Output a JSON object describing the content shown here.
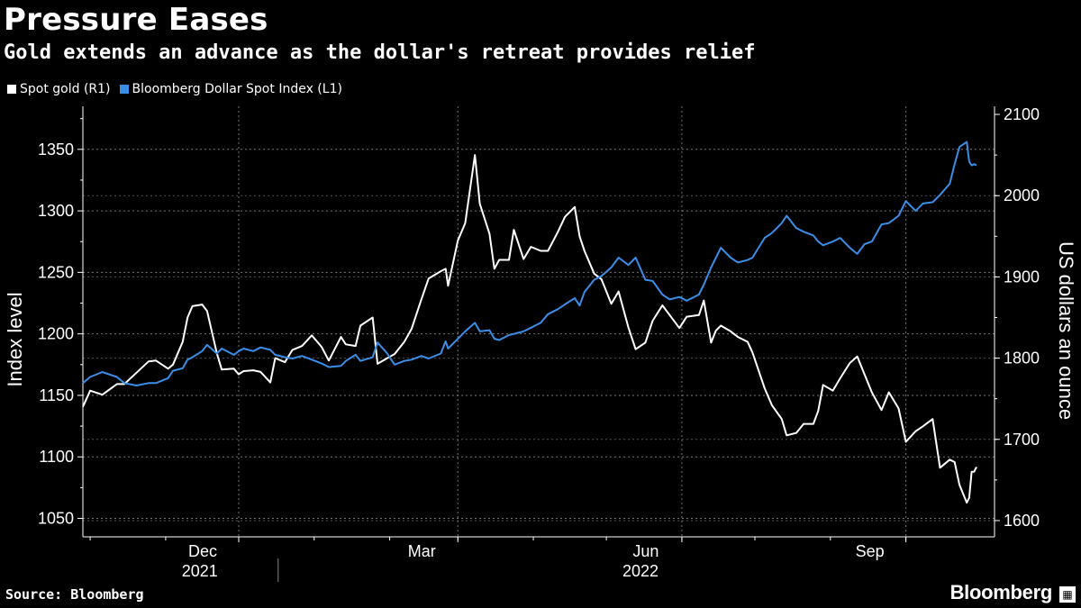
{
  "title": "Pressure Eases",
  "subtitle": "Gold extends an advance as the dollar's retreat provides relief",
  "source": "Source: Bloomberg",
  "brand": "Bloomberg",
  "colors": {
    "gold": "#ffffff",
    "dollar": "#3b8ee8",
    "grid": "#777777",
    "background": "#000000"
  },
  "legend": [
    {
      "label": "Spot gold (R1)",
      "color": "#ffffff"
    },
    {
      "label": "Bloomberg Dollar Spot Index (L1)",
      "color": "#3b8ee8"
    }
  ],
  "chart_data": {
    "type": "line",
    "ylabel_left": "Index level",
    "ylabel_right": "US dollars an ounce",
    "ylim_left": [
      1035,
      1385
    ],
    "ylim_right": [
      1580,
      2110
    ],
    "yticks_left": [
      1050,
      1100,
      1150,
      1200,
      1250,
      1300,
      1350
    ],
    "yticks_right": [
      1600,
      1700,
      1800,
      1900,
      2000,
      2100
    ],
    "xlim": [
      "2021-09-28",
      "2022-09-30"
    ],
    "xticks": [
      {
        "label": "Dec",
        "date": "2021-12-01"
      },
      {
        "label": "Mar",
        "date": "2022-03-01"
      },
      {
        "label": "Jun",
        "date": "2022-06-01"
      },
      {
        "label": "Sep",
        "date": "2022-09-01"
      }
    ],
    "year_labels": [
      {
        "label": "2021",
        "date": "2021-11-15"
      },
      {
        "label": "2022",
        "date": "2022-05-15"
      }
    ],
    "year_divider": "2022-01-01",
    "grid": true,
    "legend_position": "top-left",
    "series": [
      {
        "name": "Spot gold (R1)",
        "axis": "right",
        "points": [
          [
            "2021-09-28",
            1740
          ],
          [
            "2021-10-01",
            1760
          ],
          [
            "2021-10-06",
            1755
          ],
          [
            "2021-10-12",
            1768
          ],
          [
            "2021-10-15",
            1768
          ],
          [
            "2021-10-20",
            1782
          ],
          [
            "2021-10-25",
            1796
          ],
          [
            "2021-10-28",
            1797
          ],
          [
            "2021-11-02",
            1787
          ],
          [
            "2021-11-04",
            1792
          ],
          [
            "2021-11-08",
            1820
          ],
          [
            "2021-11-10",
            1850
          ],
          [
            "2021-11-12",
            1864
          ],
          [
            "2021-11-16",
            1866
          ],
          [
            "2021-11-18",
            1858
          ],
          [
            "2021-11-22",
            1806
          ],
          [
            "2021-11-24",
            1786
          ],
          [
            "2021-11-29",
            1787
          ],
          [
            "2021-12-01",
            1780
          ],
          [
            "2021-12-03",
            1784
          ],
          [
            "2021-12-07",
            1785
          ],
          [
            "2021-12-10",
            1783
          ],
          [
            "2021-12-14",
            1770
          ],
          [
            "2021-12-16",
            1800
          ],
          [
            "2021-12-20",
            1795
          ],
          [
            "2021-12-23",
            1810
          ],
          [
            "2021-12-27",
            1815
          ],
          [
            "2021-12-31",
            1828
          ],
          [
            "2022-01-04",
            1814
          ],
          [
            "2022-01-07",
            1797
          ],
          [
            "2022-01-12",
            1826
          ],
          [
            "2022-01-14",
            1817
          ],
          [
            "2022-01-18",
            1815
          ],
          [
            "2022-01-20",
            1840
          ],
          [
            "2022-01-25",
            1850
          ],
          [
            "2022-01-27",
            1793
          ],
          [
            "2022-01-31",
            1800
          ],
          [
            "2022-02-03",
            1805
          ],
          [
            "2022-02-07",
            1820
          ],
          [
            "2022-02-10",
            1836
          ],
          [
            "2022-02-14",
            1872
          ],
          [
            "2022-02-17",
            1898
          ],
          [
            "2022-02-22",
            1907
          ],
          [
            "2022-02-24",
            1910
          ],
          [
            "2022-02-25",
            1889
          ],
          [
            "2022-03-01",
            1945
          ],
          [
            "2022-03-04",
            1966
          ],
          [
            "2022-03-08",
            2050
          ],
          [
            "2022-03-10",
            1990
          ],
          [
            "2022-03-14",
            1953
          ],
          [
            "2022-03-16",
            1910
          ],
          [
            "2022-03-18",
            1921
          ],
          [
            "2022-03-22",
            1921
          ],
          [
            "2022-03-24",
            1958
          ],
          [
            "2022-03-28",
            1922
          ],
          [
            "2022-03-31",
            1937
          ],
          [
            "2022-04-04",
            1932
          ],
          [
            "2022-04-07",
            1932
          ],
          [
            "2022-04-11",
            1955
          ],
          [
            "2022-04-14",
            1974
          ],
          [
            "2022-04-18",
            1986
          ],
          [
            "2022-04-20",
            1950
          ],
          [
            "2022-04-22",
            1932
          ],
          [
            "2022-04-26",
            1904
          ],
          [
            "2022-04-29",
            1897
          ],
          [
            "2022-05-03",
            1867
          ],
          [
            "2022-05-06",
            1882
          ],
          [
            "2022-05-10",
            1838
          ],
          [
            "2022-05-13",
            1811
          ],
          [
            "2022-05-17",
            1819
          ],
          [
            "2022-05-20",
            1846
          ],
          [
            "2022-05-24",
            1865
          ],
          [
            "2022-05-27",
            1853
          ],
          [
            "2022-05-31",
            1837
          ],
          [
            "2022-06-03",
            1851
          ],
          [
            "2022-06-08",
            1853
          ],
          [
            "2022-06-10",
            1871
          ],
          [
            "2022-06-13",
            1819
          ],
          [
            "2022-06-15",
            1834
          ],
          [
            "2022-06-17",
            1840
          ],
          [
            "2022-06-21",
            1833
          ],
          [
            "2022-06-24",
            1826
          ],
          [
            "2022-06-28",
            1820
          ],
          [
            "2022-06-30",
            1807
          ],
          [
            "2022-07-05",
            1763
          ],
          [
            "2022-07-08",
            1742
          ],
          [
            "2022-07-12",
            1725
          ],
          [
            "2022-07-14",
            1705
          ],
          [
            "2022-07-18",
            1708
          ],
          [
            "2022-07-21",
            1719
          ],
          [
            "2022-07-25",
            1719
          ],
          [
            "2022-07-27",
            1735
          ],
          [
            "2022-07-29",
            1767
          ],
          [
            "2022-08-02",
            1760
          ],
          [
            "2022-08-05",
            1775
          ],
          [
            "2022-08-09",
            1794
          ],
          [
            "2022-08-12",
            1802
          ],
          [
            "2022-08-15",
            1780
          ],
          [
            "2022-08-18",
            1758
          ],
          [
            "2022-08-22",
            1736
          ],
          [
            "2022-08-25",
            1758
          ],
          [
            "2022-08-29",
            1738
          ],
          [
            "2022-09-01",
            1697
          ],
          [
            "2022-09-05",
            1710
          ],
          [
            "2022-09-08",
            1716
          ],
          [
            "2022-09-12",
            1725
          ],
          [
            "2022-09-15",
            1665
          ],
          [
            "2022-09-19",
            1675
          ],
          [
            "2022-09-21",
            1672
          ],
          [
            "2022-09-23",
            1644
          ],
          [
            "2022-09-26",
            1622
          ],
          [
            "2022-09-27",
            1628
          ],
          [
            "2022-09-28",
            1660
          ],
          [
            "2022-09-29",
            1660
          ],
          [
            "2022-09-30",
            1666
          ]
        ]
      },
      {
        "name": "Bloomberg Dollar Spot Index (L1)",
        "axis": "left",
        "points": [
          [
            "2021-09-28",
            1160
          ],
          [
            "2021-10-01",
            1165
          ],
          [
            "2021-10-06",
            1169
          ],
          [
            "2021-10-12",
            1165
          ],
          [
            "2021-10-15",
            1160
          ],
          [
            "2021-10-20",
            1158
          ],
          [
            "2021-10-25",
            1160
          ],
          [
            "2021-10-28",
            1160
          ],
          [
            "2021-11-02",
            1164
          ],
          [
            "2021-11-04",
            1170
          ],
          [
            "2021-11-08",
            1172
          ],
          [
            "2021-11-10",
            1179
          ],
          [
            "2021-11-12",
            1181
          ],
          [
            "2021-11-16",
            1186
          ],
          [
            "2021-11-18",
            1191
          ],
          [
            "2021-11-22",
            1184
          ],
          [
            "2021-11-24",
            1188
          ],
          [
            "2021-11-29",
            1183
          ],
          [
            "2021-12-01",
            1186
          ],
          [
            "2021-12-03",
            1188
          ],
          [
            "2021-12-07",
            1186
          ],
          [
            "2021-12-10",
            1189
          ],
          [
            "2021-12-14",
            1187
          ],
          [
            "2021-12-16",
            1183
          ],
          [
            "2021-12-20",
            1181
          ],
          [
            "2021-12-23",
            1180
          ],
          [
            "2021-12-27",
            1182
          ],
          [
            "2021-12-31",
            1179
          ],
          [
            "2022-01-04",
            1176
          ],
          [
            "2022-01-07",
            1173
          ],
          [
            "2022-01-12",
            1174
          ],
          [
            "2022-01-14",
            1178
          ],
          [
            "2022-01-18",
            1183
          ],
          [
            "2022-01-20",
            1178
          ],
          [
            "2022-01-25",
            1181
          ],
          [
            "2022-01-27",
            1193
          ],
          [
            "2022-01-31",
            1184
          ],
          [
            "2022-02-03",
            1175
          ],
          [
            "2022-02-07",
            1178
          ],
          [
            "2022-02-10",
            1179
          ],
          [
            "2022-02-14",
            1182
          ],
          [
            "2022-02-17",
            1180
          ],
          [
            "2022-02-22",
            1184
          ],
          [
            "2022-02-24",
            1194
          ],
          [
            "2022-02-25",
            1188
          ],
          [
            "2022-03-01",
            1196
          ],
          [
            "2022-03-04",
            1202
          ],
          [
            "2022-03-08",
            1209
          ],
          [
            "2022-03-10",
            1202
          ],
          [
            "2022-03-14",
            1203
          ],
          [
            "2022-03-16",
            1196
          ],
          [
            "2022-03-18",
            1195
          ],
          [
            "2022-03-22",
            1199
          ],
          [
            "2022-03-24",
            1200
          ],
          [
            "2022-03-28",
            1202
          ],
          [
            "2022-03-31",
            1205
          ],
          [
            "2022-04-04",
            1209
          ],
          [
            "2022-04-07",
            1216
          ],
          [
            "2022-04-11",
            1220
          ],
          [
            "2022-04-14",
            1224
          ],
          [
            "2022-04-18",
            1229
          ],
          [
            "2022-04-20",
            1223
          ],
          [
            "2022-04-22",
            1234
          ],
          [
            "2022-04-26",
            1244
          ],
          [
            "2022-04-29",
            1247
          ],
          [
            "2022-05-03",
            1254
          ],
          [
            "2022-05-06",
            1262
          ],
          [
            "2022-05-10",
            1256
          ],
          [
            "2022-05-13",
            1262
          ],
          [
            "2022-05-17",
            1244
          ],
          [
            "2022-05-20",
            1243
          ],
          [
            "2022-05-24",
            1232
          ],
          [
            "2022-05-27",
            1228
          ],
          [
            "2022-05-31",
            1230
          ],
          [
            "2022-06-03",
            1227
          ],
          [
            "2022-06-08",
            1232
          ],
          [
            "2022-06-10",
            1240
          ],
          [
            "2022-06-13",
            1254
          ],
          [
            "2022-06-15",
            1262
          ],
          [
            "2022-06-17",
            1270
          ],
          [
            "2022-06-21",
            1262
          ],
          [
            "2022-06-24",
            1258
          ],
          [
            "2022-06-28",
            1260
          ],
          [
            "2022-06-30",
            1262
          ],
          [
            "2022-07-05",
            1278
          ],
          [
            "2022-07-08",
            1282
          ],
          [
            "2022-07-12",
            1290
          ],
          [
            "2022-07-14",
            1296
          ],
          [
            "2022-07-18",
            1286
          ],
          [
            "2022-07-21",
            1283
          ],
          [
            "2022-07-25",
            1280
          ],
          [
            "2022-07-27",
            1275
          ],
          [
            "2022-07-29",
            1272
          ],
          [
            "2022-08-02",
            1275
          ],
          [
            "2022-08-05",
            1278
          ],
          [
            "2022-08-09",
            1270
          ],
          [
            "2022-08-12",
            1265
          ],
          [
            "2022-08-15",
            1273
          ],
          [
            "2022-08-18",
            1275
          ],
          [
            "2022-08-22",
            1289
          ],
          [
            "2022-08-25",
            1290
          ],
          [
            "2022-08-29",
            1296
          ],
          [
            "2022-09-01",
            1308
          ],
          [
            "2022-09-05",
            1300
          ],
          [
            "2022-09-08",
            1306
          ],
          [
            "2022-09-12",
            1307
          ],
          [
            "2022-09-15",
            1313
          ],
          [
            "2022-09-19",
            1322
          ],
          [
            "2022-09-21",
            1338
          ],
          [
            "2022-09-23",
            1352
          ],
          [
            "2022-09-26",
            1356
          ],
          [
            "2022-09-27",
            1340
          ],
          [
            "2022-09-28",
            1337
          ],
          [
            "2022-09-29",
            1338
          ],
          [
            "2022-09-30",
            1337
          ]
        ]
      }
    ]
  }
}
